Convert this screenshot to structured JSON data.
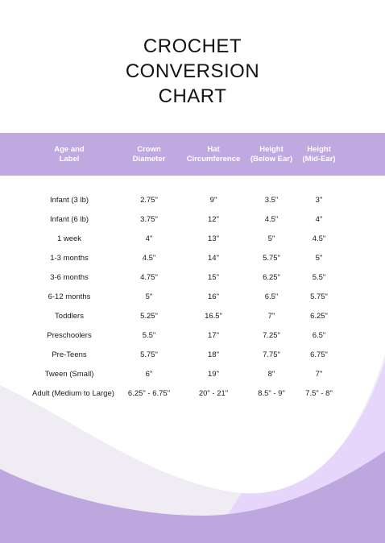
{
  "title_lines": [
    "CROCHET",
    "CONVERSION",
    "CHART"
  ],
  "colors": {
    "header": "#c0a8e0",
    "wave_light": "#efedf3",
    "wave_lavender": "#e6d6fb",
    "wave_purple": "#bea6de"
  },
  "table": {
    "headers": [
      "Age and\nLabel",
      "Crown\nDiameter",
      "Hat\nCircumference",
      "Height\n(Below Ear)",
      "Height\n(Mid-Ear)"
    ],
    "rows": [
      [
        "Infant (3 lb)",
        "2.75\"",
        "9\"",
        "3.5\"",
        "3\""
      ],
      [
        "Infant (6 lb)",
        "3.75\"",
        "12\"",
        "4.5\"",
        "4\""
      ],
      [
        "1 week",
        "4\"",
        "13\"",
        "5\"",
        "4.5\""
      ],
      [
        "1-3 months",
        "4.5\"",
        "14\"",
        "5.75\"",
        "5\""
      ],
      [
        "3-6 months",
        "4.75\"",
        "15\"",
        "6.25\"",
        "5.5\""
      ],
      [
        "6-12 months",
        "5\"",
        "16\"",
        "6.5\"",
        "5.75\""
      ],
      [
        "Toddlers",
        "5.25\"",
        "16.5\"",
        "7\"",
        "6.25\""
      ],
      [
        "Preschoolers",
        "5.5\"",
        "17\"",
        "7.25\"",
        "6.5\""
      ],
      [
        "Pre-Teens",
        "5.75\"",
        "18\"",
        "7.75\"",
        "6.75\""
      ],
      [
        "Tween (Small)",
        "6\"",
        "19\"",
        "8\"",
        "7\""
      ],
      [
        "Adult (Medium to Large)",
        "6.25\" - 6.75\"",
        "20\" - 21\"",
        "8.5\" - 9\"",
        "7.5\" - 8\""
      ]
    ]
  }
}
